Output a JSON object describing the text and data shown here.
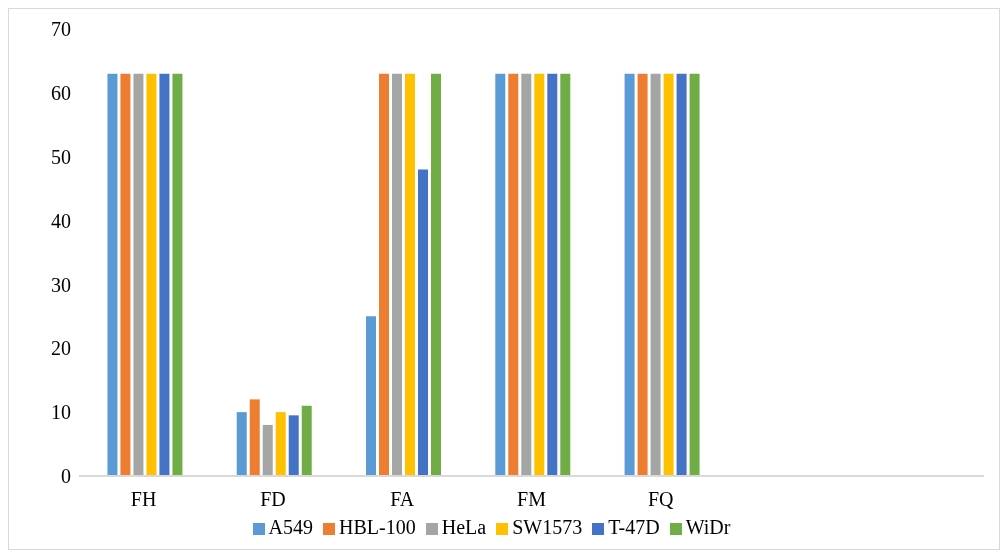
{
  "chart_data": {
    "type": "bar",
    "categories": [
      "FH",
      "FD",
      "FA",
      "FM",
      "FQ",
      null,
      null
    ],
    "series": [
      {
        "name": "A549",
        "color": "#5b9bd5",
        "values": [
          63,
          10,
          25,
          63,
          63,
          null,
          null
        ]
      },
      {
        "name": "HBL-100",
        "color": "#ed7d31",
        "values": [
          63,
          12,
          63,
          63,
          63,
          null,
          null
        ]
      },
      {
        "name": "HeLa",
        "color": "#a5a5a5",
        "values": [
          63,
          8,
          63,
          63,
          63,
          null,
          null
        ]
      },
      {
        "name": "SW1573",
        "color": "#ffc000",
        "values": [
          63,
          10,
          63,
          63,
          63,
          null,
          null
        ]
      },
      {
        "name": "T-47D",
        "color": "#4472c4",
        "values": [
          63,
          9.5,
          48,
          63,
          63,
          null,
          null
        ]
      },
      {
        "name": "WiDr",
        "color": "#70ad47",
        "values": [
          63,
          11,
          63,
          63,
          63,
          null,
          null
        ]
      }
    ],
    "ylim": [
      0,
      70
    ],
    "yticks": [
      0,
      10,
      20,
      30,
      40,
      50,
      60,
      70
    ],
    "grid": false,
    "legend": "bottom"
  }
}
